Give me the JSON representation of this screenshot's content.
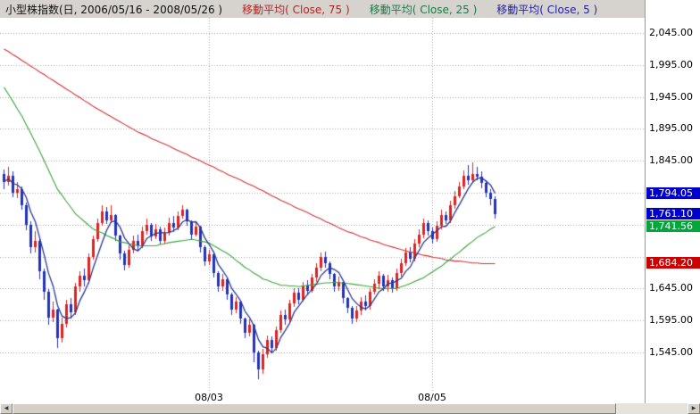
{
  "header": {
    "title": "小型株指数(日, 2006/05/16 - 2008/05/26 )",
    "legends": [
      {
        "label": "移動平均( Close, 75 )",
        "color": "#bb2222"
      },
      {
        "label": "移動平均( Close, 25 )",
        "color": "#1a7a4a"
      },
      {
        "label": "移動平均( Close, 5 )",
        "color": "#2222aa"
      }
    ]
  },
  "colors": {
    "up_candle": "#dd2222",
    "down_candle": "#2233bb",
    "ma75": "#cc3333",
    "ma25": "#3aa33a",
    "ma5": "#2b3990",
    "grid": "#a8a8a8",
    "header_bg": "#d6d3ce"
  },
  "y_axis": {
    "labels": [
      {
        "text": "2,045.00",
        "price": 2045
      },
      {
        "text": "1,995.00",
        "price": 1995
      },
      {
        "text": "1,945.00",
        "price": 1945
      },
      {
        "text": "1,895.00",
        "price": 1895
      },
      {
        "text": "1,845.00",
        "price": 1845
      },
      {
        "text": "1,645.00",
        "price": 1645
      },
      {
        "text": "1,595.00",
        "price": 1595
      },
      {
        "text": "1,545.00",
        "price": 1545
      }
    ],
    "boxes": [
      {
        "text": "1,794.05",
        "price": 1794.05,
        "bg": "#0000cc"
      },
      {
        "text": "1,761.10",
        "price": 1761.1,
        "bg": "#0000cc"
      },
      {
        "text": "1,741.56",
        "price": 1741.56,
        "bg": "#00a83c"
      },
      {
        "text": "1,684.20",
        "price": 1684.2,
        "bg": "#cc0000"
      }
    ]
  },
  "chart_data": {
    "type": "candlestick",
    "instrument": "小型株指数",
    "period": "日",
    "date_range": "2006/05/16 - 2008/05/26",
    "ylim": [
      1495,
      2070
    ],
    "grid_prices": [
      2045,
      1995,
      1945,
      1895,
      1845,
      1795,
      1745,
      1695,
      1645,
      1595,
      1545
    ],
    "x_ticks": [
      {
        "label": "08/03",
        "index": 46
      },
      {
        "label": "08/05",
        "index": 96
      }
    ],
    "last_values": {
      "close": 1761.1,
      "ma5": 1794.05,
      "ma25": 1741.56,
      "ma75": 1684.2
    },
    "candles": [
      [
        1825,
        1832,
        1800,
        1812
      ],
      [
        1812,
        1835,
        1806,
        1822
      ],
      [
        1822,
        1828,
        1788,
        1795
      ],
      [
        1795,
        1812,
        1786,
        1800
      ],
      [
        1800,
        1805,
        1768,
        1775
      ],
      [
        1775,
        1780,
        1736,
        1745
      ],
      [
        1745,
        1750,
        1700,
        1710
      ],
      [
        1710,
        1735,
        1702,
        1720
      ],
      [
        1720,
        1722,
        1660,
        1672
      ],
      [
        1672,
        1676,
        1628,
        1640
      ],
      [
        1640,
        1644,
        1588,
        1600
      ],
      [
        1600,
        1625,
        1592,
        1612
      ],
      [
        1612,
        1614,
        1552,
        1568
      ],
      [
        1568,
        1600,
        1560,
        1590
      ],
      [
        1590,
        1628,
        1584,
        1620
      ],
      [
        1620,
        1630,
        1598,
        1608
      ],
      [
        1608,
        1654,
        1604,
        1648
      ],
      [
        1648,
        1672,
        1640,
        1665
      ],
      [
        1665,
        1676,
        1648,
        1658
      ],
      [
        1658,
        1700,
        1652,
        1695
      ],
      [
        1695,
        1728,
        1690,
        1722
      ],
      [
        1722,
        1754,
        1718,
        1748
      ],
      [
        1748,
        1775,
        1744,
        1765
      ],
      [
        1765,
        1772,
        1746,
        1752
      ],
      [
        1752,
        1776,
        1748,
        1760
      ],
      [
        1760,
        1762,
        1720,
        1728
      ],
      [
        1728,
        1730,
        1690,
        1700
      ],
      [
        1700,
        1704,
        1674,
        1682
      ],
      [
        1682,
        1712,
        1678,
        1706
      ],
      [
        1706,
        1728,
        1700,
        1720
      ],
      [
        1720,
        1730,
        1704,
        1712
      ],
      [
        1712,
        1742,
        1708,
        1735
      ],
      [
        1735,
        1754,
        1730,
        1745
      ],
      [
        1745,
        1748,
        1720,
        1726
      ],
      [
        1726,
        1746,
        1722,
        1738
      ],
      [
        1738,
        1742,
        1714,
        1720
      ],
      [
        1720,
        1740,
        1716,
        1732
      ],
      [
        1732,
        1756,
        1728,
        1748
      ],
      [
        1748,
        1758,
        1734,
        1740
      ],
      [
        1740,
        1766,
        1736,
        1758
      ],
      [
        1758,
        1775,
        1754,
        1768
      ],
      [
        1768,
        1770,
        1744,
        1750
      ],
      [
        1750,
        1752,
        1722,
        1730
      ],
      [
        1730,
        1750,
        1726,
        1742
      ],
      [
        1742,
        1744,
        1702,
        1710
      ],
      [
        1710,
        1712,
        1680,
        1688
      ],
      [
        1688,
        1706,
        1682,
        1698
      ],
      [
        1698,
        1700,
        1662,
        1670
      ],
      [
        1670,
        1672,
        1640,
        1648
      ],
      [
        1648,
        1668,
        1642,
        1660
      ],
      [
        1660,
        1662,
        1628,
        1636
      ],
      [
        1636,
        1638,
        1604,
        1612
      ],
      [
        1612,
        1632,
        1606,
        1624
      ],
      [
        1624,
        1626,
        1590,
        1598
      ],
      [
        1598,
        1600,
        1568,
        1576
      ],
      [
        1576,
        1596,
        1570,
        1588
      ],
      [
        1588,
        1590,
        1530,
        1545
      ],
      [
        1545,
        1548,
        1503,
        1518
      ],
      [
        1518,
        1550,
        1512,
        1542
      ],
      [
        1542,
        1572,
        1536,
        1565
      ],
      [
        1565,
        1570,
        1544,
        1552
      ],
      [
        1552,
        1586,
        1548,
        1580
      ],
      [
        1580,
        1610,
        1576,
        1604
      ],
      [
        1604,
        1612,
        1588,
        1596
      ],
      [
        1596,
        1628,
        1592,
        1622
      ],
      [
        1622,
        1645,
        1616,
        1638
      ],
      [
        1638,
        1646,
        1620,
        1628
      ],
      [
        1628,
        1656,
        1624,
        1650
      ],
      [
        1650,
        1658,
        1634,
        1642
      ],
      [
        1642,
        1668,
        1638,
        1662
      ],
      [
        1662,
        1684,
        1656,
        1678
      ],
      [
        1678,
        1702,
        1672,
        1695
      ],
      [
        1695,
        1703,
        1678,
        1685
      ],
      [
        1685,
        1688,
        1660,
        1668
      ],
      [
        1668,
        1670,
        1640,
        1648
      ],
      [
        1648,
        1664,
        1642,
        1655
      ],
      [
        1655,
        1656,
        1622,
        1630
      ],
      [
        1630,
        1632,
        1606,
        1615
      ],
      [
        1615,
        1618,
        1590,
        1598
      ],
      [
        1598,
        1618,
        1592,
        1610
      ],
      [
        1610,
        1632,
        1604,
        1625
      ],
      [
        1625,
        1634,
        1610,
        1618
      ],
      [
        1618,
        1646,
        1612,
        1640
      ],
      [
        1640,
        1660,
        1636,
        1652
      ],
      [
        1652,
        1672,
        1646,
        1665
      ],
      [
        1665,
        1668,
        1642,
        1648
      ],
      [
        1648,
        1666,
        1640,
        1658
      ],
      [
        1658,
        1662,
        1638,
        1645
      ],
      [
        1645,
        1676,
        1641,
        1670
      ],
      [
        1670,
        1692,
        1664,
        1685
      ],
      [
        1685,
        1708,
        1680,
        1702
      ],
      [
        1702,
        1710,
        1686,
        1692
      ],
      [
        1692,
        1722,
        1688,
        1715
      ],
      [
        1715,
        1738,
        1710,
        1730
      ],
      [
        1730,
        1754,
        1724,
        1748
      ],
      [
        1748,
        1752,
        1728,
        1735
      ],
      [
        1735,
        1740,
        1716,
        1722
      ],
      [
        1722,
        1750,
        1718,
        1744
      ],
      [
        1744,
        1768,
        1738,
        1760
      ],
      [
        1760,
        1766,
        1746,
        1752
      ],
      [
        1752,
        1782,
        1748,
        1775
      ],
      [
        1775,
        1798,
        1770,
        1790
      ],
      [
        1790,
        1812,
        1786,
        1805
      ],
      [
        1805,
        1830,
        1800,
        1822
      ],
      [
        1822,
        1838,
        1808,
        1815
      ],
      [
        1815,
        1842,
        1812,
        1825
      ],
      [
        1825,
        1836,
        1814,
        1820
      ],
      [
        1820,
        1828,
        1802,
        1810
      ],
      [
        1810,
        1815,
        1788,
        1795
      ],
      [
        1795,
        1800,
        1776,
        1785
      ],
      [
        1785,
        1790,
        1755,
        1761
      ]
    ],
    "series": [
      {
        "name": "移動平均( Close, 75 )",
        "period": 75,
        "color": "#cc3333",
        "values": [
          2020,
          2016,
          2011,
          2007,
          2002,
          1998,
          1993,
          1989,
          1984,
          1980,
          1975,
          1971,
          1966,
          1962,
          1957,
          1953,
          1948,
          1944,
          1939,
          1935,
          1930,
          1926,
          1922,
          1918,
          1914,
          1910,
          1906,
          1902,
          1898,
          1894,
          1890,
          1887,
          1884,
          1880,
          1877,
          1874,
          1871,
          1868,
          1864,
          1861,
          1858,
          1855,
          1851,
          1848,
          1845,
          1841,
          1838,
          1835,
          1831,
          1828,
          1824,
          1821,
          1818,
          1815,
          1811,
          1808,
          1805,
          1801,
          1798,
          1794,
          1790,
          1787,
          1783,
          1780,
          1777,
          1773,
          1770,
          1767,
          1764,
          1760,
          1757,
          1754,
          1750,
          1747,
          1744,
          1740,
          1737,
          1734,
          1732,
          1729,
          1726,
          1724,
          1721,
          1719,
          1717,
          1714,
          1712,
          1710,
          1708,
          1706,
          1704,
          1702,
          1701,
          1699,
          1697,
          1696,
          1694,
          1693,
          1692,
          1690,
          1689,
          1688,
          1688,
          1687,
          1686,
          1685,
          1685,
          1684,
          1684,
          1684,
          1684
        ]
      },
      {
        "name": "移動平均( Close, 25 )",
        "period": 25,
        "color": "#3aa33a",
        "values": [
          1960,
          1949,
          1938,
          1926,
          1915,
          1901,
          1888,
          1874,
          1860,
          1845,
          1830,
          1815,
          1800,
          1791,
          1781,
          1772,
          1762,
          1756,
          1750,
          1744,
          1738,
          1735,
          1732,
          1728,
          1725,
          1722,
          1718,
          1717,
          1715,
          1714,
          1712,
          1712,
          1712,
          1712,
          1712,
          1714,
          1715,
          1717,
          1718,
          1719,
          1720,
          1721,
          1722,
          1721,
          1719,
          1718,
          1716,
          1712,
          1708,
          1704,
          1700,
          1695,
          1689,
          1684,
          1678,
          1674,
          1669,
          1665,
          1660,
          1658,
          1655,
          1653,
          1650,
          1650,
          1649,
          1649,
          1648,
          1649,
          1650,
          1651,
          1652,
          1653,
          1654,
          1654,
          1655,
          1654,
          1654,
          1653,
          1652,
          1651,
          1650,
          1649,
          1648,
          1647,
          1645,
          1645,
          1645,
          1645,
          1645,
          1648,
          1650,
          1653,
          1656,
          1659,
          1662,
          1667,
          1671,
          1676,
          1680,
          1686,
          1691,
          1697,
          1702,
          1708,
          1714,
          1719,
          1725,
          1729,
          1733,
          1738,
          1742
        ]
      },
      {
        "name": "移動平均( Close, 5 )",
        "period": 5,
        "color": "#2b3990",
        "derived_from": "candles"
      }
    ]
  }
}
